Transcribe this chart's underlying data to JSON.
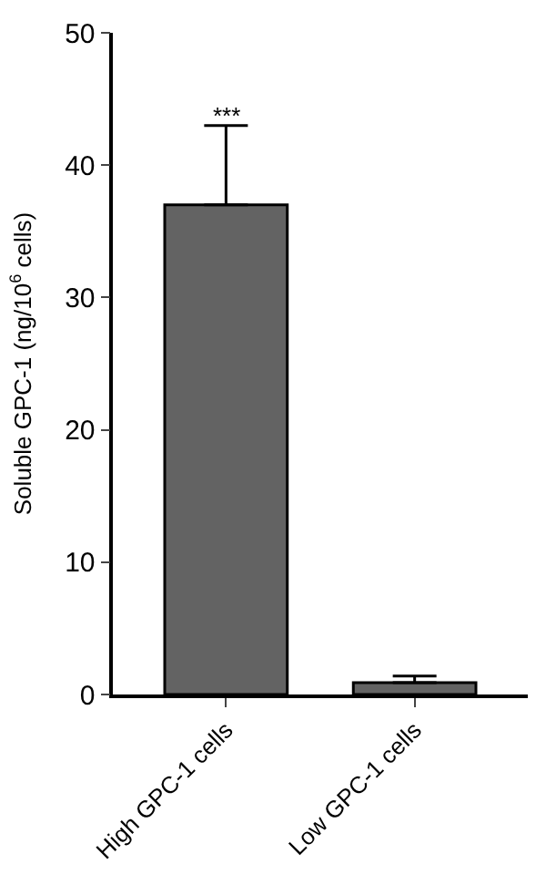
{
  "chart_data": {
    "type": "bar",
    "ylabel": "Soluble GPC-1 (ng/10$^{6}$ cells)",
    "categories": [
      "High GPC-1 cells",
      "Low GPC-1 cells"
    ],
    "values": [
      37,
      0.9
    ],
    "color": "#636363",
    "errors": [
      [
        37,
        43
      ],
      [
        0.9,
        1.4
      ]
    ],
    "ylim": [
      0,
      50
    ],
    "yticks": [
      0,
      10,
      20,
      30,
      40,
      50
    ],
    "legend": false,
    "annotations": [
      "***"
    ]
  }
}
